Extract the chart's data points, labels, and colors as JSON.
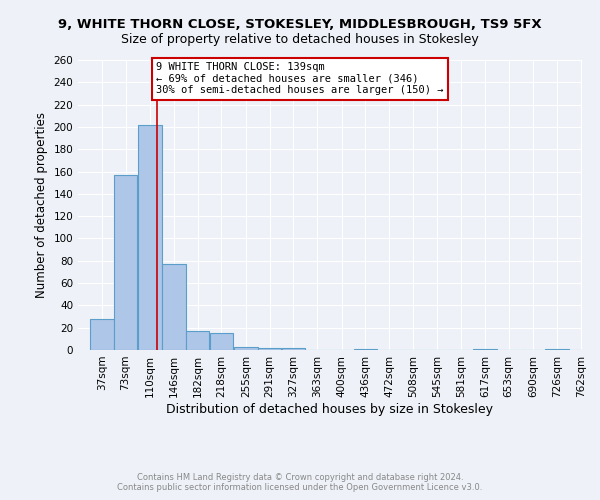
{
  "title1": "9, WHITE THORN CLOSE, STOKESLEY, MIDDLESBROUGH, TS9 5FX",
  "title2": "Size of property relative to detached houses in Stokesley",
  "xlabel": "Distribution of detached houses by size in Stokesley",
  "ylabel": "Number of detached properties",
  "bar_edges": [
    37,
    73,
    110,
    146,
    182,
    218,
    255,
    291,
    327,
    363,
    400,
    436,
    472,
    508,
    545,
    581,
    617,
    653,
    690,
    726,
    762
  ],
  "bar_heights": [
    28,
    157,
    202,
    77,
    17,
    15,
    3,
    2,
    2,
    0,
    0,
    1,
    0,
    0,
    0,
    0,
    1,
    0,
    0,
    1,
    0
  ],
  "bar_color": "#aec6e8",
  "bar_edge_color": "#5a9ec9",
  "property_line_x": 139,
  "annotation_line1": "9 WHITE THORN CLOSE: 139sqm",
  "annotation_line2": "← 69% of detached houses are smaller (346)",
  "annotation_line3": "30% of semi-detached houses are larger (150) →",
  "annotation_box_color": "#ffffff",
  "annotation_box_edge_color": "#cc0000",
  "vline_color": "#cc0000",
  "ylim": [
    0,
    260
  ],
  "yticks": [
    0,
    20,
    40,
    60,
    80,
    100,
    120,
    140,
    160,
    180,
    200,
    220,
    240,
    260
  ],
  "footer_line1": "Contains HM Land Registry data © Crown copyright and database right 2024.",
  "footer_line2": "Contains public sector information licensed under the Open Government Licence v3.0.",
  "footer_color": "#888888",
  "background_color": "#eef2f8",
  "grid_color": "#ffffff",
  "title1_fontsize": 9.5,
  "title2_fontsize": 9,
  "xlabel_fontsize": 9,
  "ylabel_fontsize": 8.5,
  "annotation_fontsize": 7.5,
  "tick_fontsize": 7.5,
  "footer_fontsize": 6.0
}
